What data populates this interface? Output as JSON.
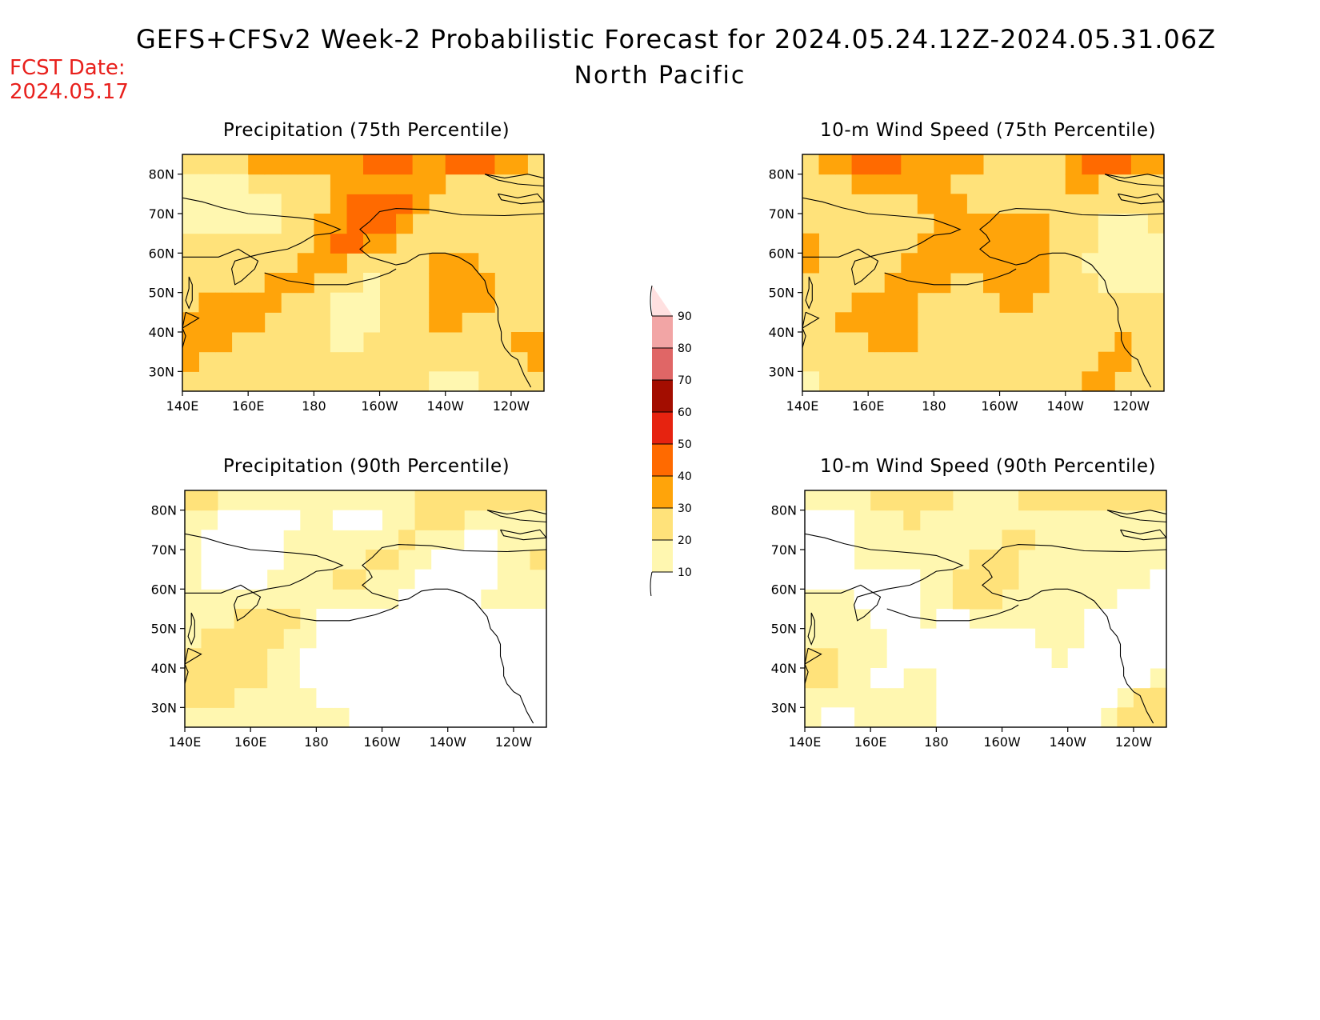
{
  "title": "GEFS+CFSv2 Week-2 Probabilistic Forecast for 2024.05.24.12Z-2024.05.31.06Z",
  "region": "North Pacific",
  "fcst_date_label": "FCST Date:",
  "fcst_date": "2024.05.17",
  "colors": {
    "fcst_date": "#e8201c",
    "bins": [
      "#ffffff",
      "#fff7b0",
      "#ffe27a",
      "#ffa40a",
      "#ff6a00",
      "#e62310",
      "#a30d00",
      "#e06666",
      "#f2a5a5",
      "#ffe0e0"
    ]
  },
  "colorbar": {
    "ticks": [
      "10",
      "20",
      "30",
      "40",
      "50",
      "60",
      "70",
      "80",
      "90"
    ],
    "values": [
      10,
      20,
      30,
      40,
      50,
      60,
      70,
      80,
      90
    ]
  },
  "map_axes": {
    "lon_ticks": [
      "140E",
      "160E",
      "180",
      "160W",
      "140W",
      "120W"
    ],
    "lat_ticks": [
      "80N",
      "70N",
      "60N",
      "50N",
      "40N",
      "30N"
    ],
    "lon_range": [
      140,
      250
    ],
    "lat_range": [
      25,
      85
    ]
  },
  "panels": [
    {
      "id": "precip-75",
      "title": "Precipitation (75th Percentile)",
      "base_bin": 2
    },
    {
      "id": "wind-75",
      "title": "10-m Wind Speed (75th Percentile)",
      "base_bin": 2
    },
    {
      "id": "precip-90",
      "title": "Precipitation (90th Percentile)",
      "base_bin": 1
    },
    {
      "id": "wind-90",
      "title": "10-m Wind Speed (90th Percentile)",
      "base_bin": 1
    }
  ]
}
